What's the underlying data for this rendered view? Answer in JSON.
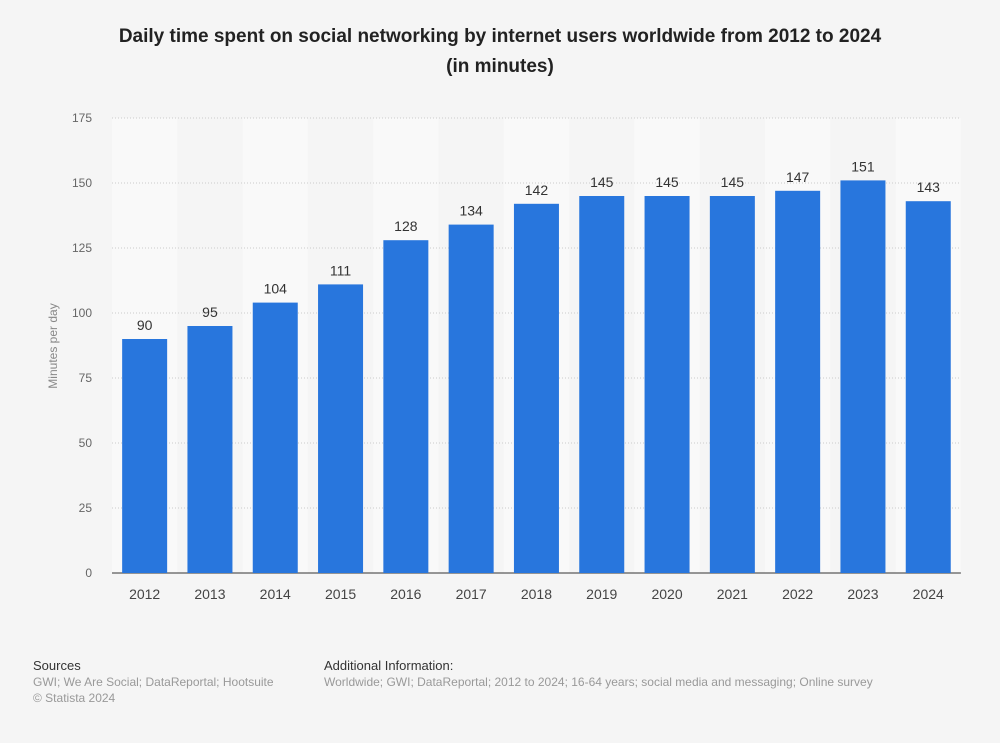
{
  "chart_data": {
    "type": "bar",
    "title_line1": "Daily time spent on social networking by internet users worldwide from 2012 to 2024",
    "title_line2": "(in minutes)",
    "xlabel": "",
    "ylabel": "Minutes per day",
    "categories": [
      "2012",
      "2013",
      "2014",
      "2015",
      "2016",
      "2017",
      "2018",
      "2019",
      "2020",
      "2021",
      "2022",
      "2023",
      "2024"
    ],
    "values": [
      90,
      95,
      104,
      111,
      128,
      134,
      142,
      145,
      145,
      145,
      147,
      151,
      143
    ],
    "ylim": [
      0,
      175
    ],
    "yticks": [
      0,
      25,
      50,
      75,
      100,
      125,
      150,
      175
    ],
    "grid": true,
    "bar_color": "#2876dd"
  },
  "footer": {
    "sources_heading": "Sources",
    "sources": "GWI; We Are Social; DataReportal; Hootsuite",
    "copyright": "© Statista 2024",
    "additional_heading": "Additional Information:",
    "additional": "Worldwide; GWI; DataReportal; 2012 to 2024; 16-64 years; social media and messaging; Online survey"
  }
}
